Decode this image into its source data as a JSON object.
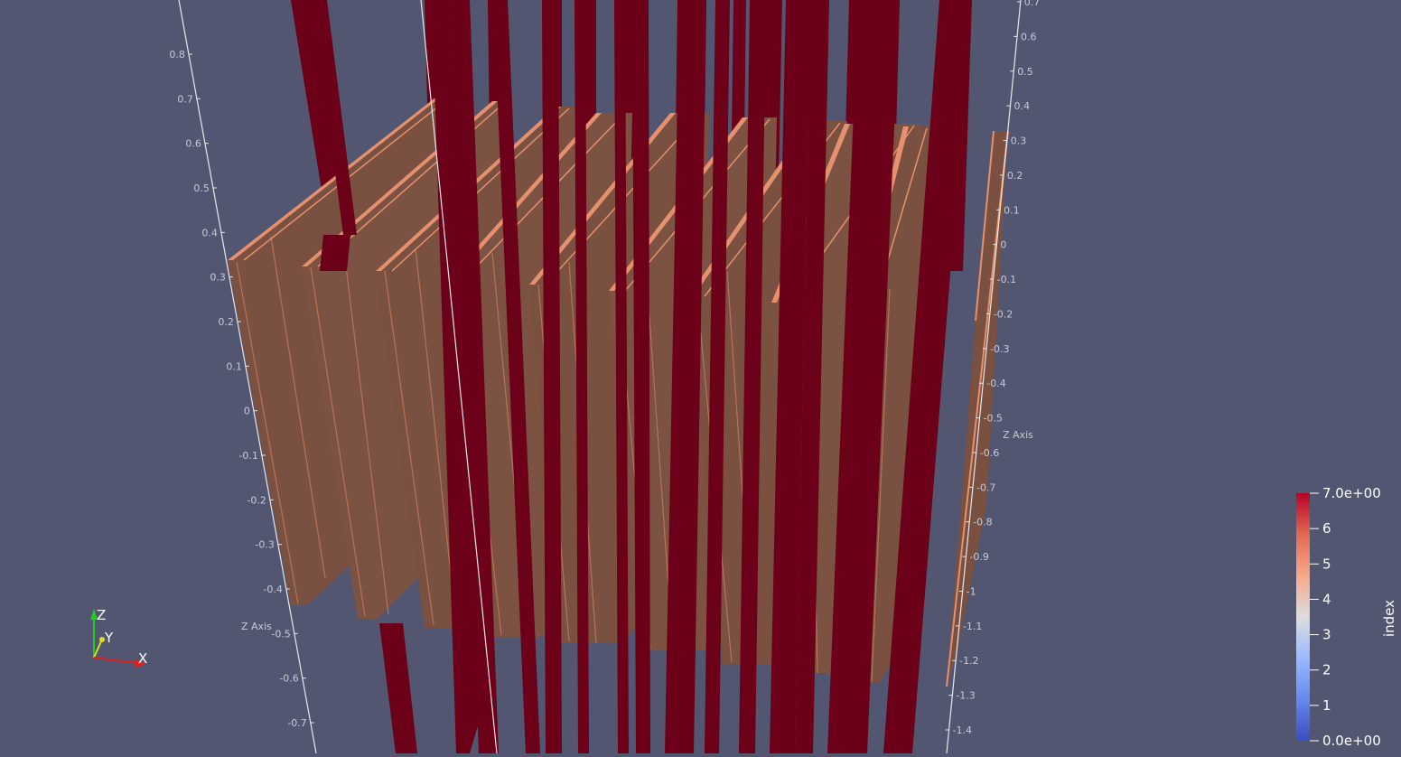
{
  "colors": {
    "background": "#525670",
    "rods": "#6b0018",
    "plates": "#7a5040",
    "plate_edges": "#e5906e",
    "axis_lines": "#e8e8ee",
    "axis_text": "#c9cad6",
    "colormap": [
      "#3b4cc0",
      "#6788ee",
      "#9abbff",
      "#dddddd",
      "#f7a889",
      "#e26952",
      "#b40426"
    ]
  },
  "left_axis": {
    "title": "Z Axis",
    "ticks": [
      "0.8",
      "0.7",
      "0.6",
      "0.5",
      "0.4",
      "0.3",
      "0.2",
      "0.1",
      "0",
      "-0.1",
      "-0.2",
      "-0.3",
      "-0.4",
      "-0.5",
      "-0.6",
      "-0.7"
    ]
  },
  "right_axis": {
    "title": "Z Axis",
    "ticks": [
      "0.7",
      "0.6",
      "0.5",
      "0.4",
      "0.3",
      "0.2",
      "0.1",
      "0",
      "-0.1",
      "-0.2",
      "-0.3",
      "-0.4",
      "-0.5",
      "-0.6",
      "-0.7",
      "-0.8",
      "-0.9",
      "-1",
      "-1.1",
      "-1.2",
      "-1.3",
      "-1.4"
    ]
  },
  "orientation_axes": {
    "x": "X",
    "y": "Y",
    "z": "Z"
  },
  "scalar_bar": {
    "title": "index",
    "range": [
      0,
      7
    ],
    "labels": [
      "7.0e+00",
      "6",
      "5",
      "4",
      "3",
      "2",
      "1",
      "0.0e+00"
    ]
  }
}
